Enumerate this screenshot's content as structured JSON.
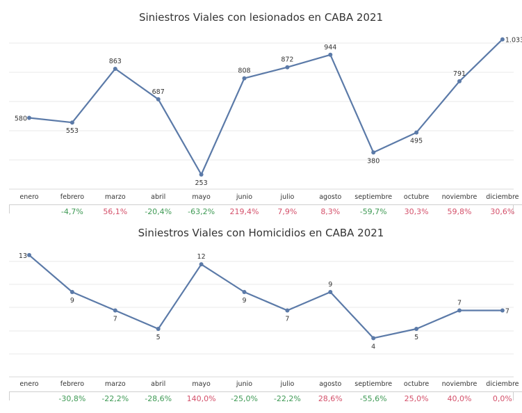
{
  "chart_data": [
    {
      "type": "line",
      "title": "Siniestros Viales con lesionados en CABA 2021",
      "categories": [
        "enero",
        "febrero",
        "marzo",
        "abril",
        "mayo",
        "junio",
        "julio",
        "agosto",
        "septiembre",
        "octubre",
        "noviembre",
        "diciembre"
      ],
      "values": [
        580,
        553,
        863,
        687,
        253,
        808,
        872,
        944,
        380,
        495,
        791,
        1033
      ],
      "value_labels": [
        "580",
        "553",
        "863",
        "687",
        "253",
        "808",
        "872",
        "944",
        "380",
        "495",
        "791",
        "1.033"
      ],
      "ylim": [
        0,
        1100
      ],
      "grid": true,
      "monthly_change": [
        "",
        "-4,7%",
        "56,1%",
        "-20,4%",
        "-63,2%",
        "219,4%",
        "7,9%",
        "8,3%",
        "-59,7%",
        "30,3%",
        "59,8%",
        "30,6%"
      ],
      "colors": {
        "line": "#5b7aa8",
        "grid": "#e8e8e8",
        "positive": "#d4506a",
        "negative": "#3f9a55"
      }
    },
    {
      "type": "line",
      "title": "Siniestros Viales con Homicidios en CABA 2021",
      "categories": [
        "enero",
        "febrero",
        "marzo",
        "abril",
        "mayo",
        "junio",
        "julio",
        "agosto",
        "septiembre",
        "octubre",
        "noviembre",
        "diciembre"
      ],
      "values": [
        13,
        9,
        7,
        5,
        12,
        9,
        7,
        9,
        4,
        5,
        7,
        7
      ],
      "value_labels": [
        "13",
        "9",
        "7",
        "5",
        "12",
        "9",
        "7",
        "9",
        "4",
        "5",
        "7",
        "7"
      ],
      "ylim": [
        1,
        14
      ],
      "grid": true,
      "monthly_change": [
        "",
        "-30,8%",
        "-22,2%",
        "-28,6%",
        "140,0%",
        "-25,0%",
        "-22,2%",
        "28,6%",
        "-55,6%",
        "25,0%",
        "40,0%",
        "0,0%"
      ],
      "colors": {
        "line": "#5b7aa8",
        "grid": "#e8e8e8",
        "positive": "#d4506a",
        "negative": "#3f9a55"
      }
    }
  ]
}
